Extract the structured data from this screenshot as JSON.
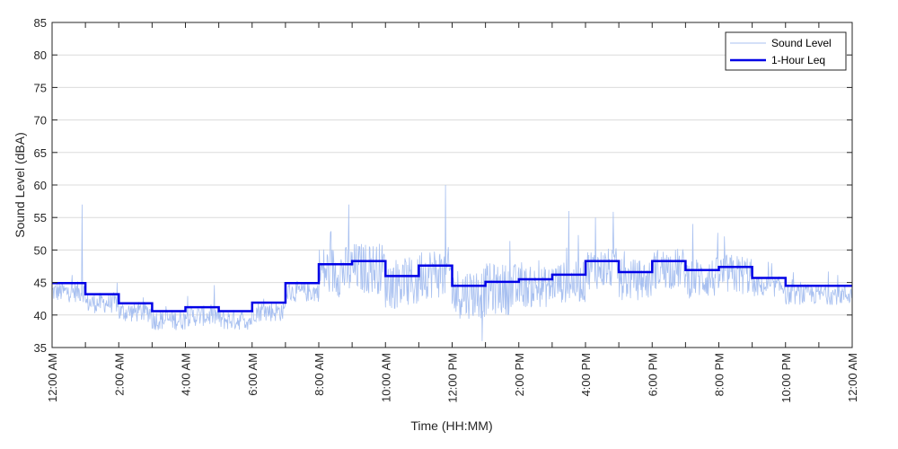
{
  "chart_data": {
    "type": "line",
    "xlabel": "Time (HH:MM)",
    "ylabel": "Sound Level (dBA)",
    "ylim": [
      35,
      85
    ],
    "yticks": [
      35,
      40,
      45,
      50,
      55,
      60,
      65,
      70,
      75,
      80,
      85
    ],
    "xlim_hours": [
      0,
      24
    ],
    "xtick_hours": [
      0,
      2,
      4,
      6,
      8,
      10,
      12,
      14,
      16,
      18,
      20,
      22,
      24
    ],
    "xtick_labels": [
      "12:00 AM",
      "2:00 AM",
      "4:00 AM",
      "6:00 AM",
      "8:00 AM",
      "10:00 AM",
      "12:00 PM",
      "2:00 PM",
      "4:00 PM",
      "6:00 PM",
      "8:00 PM",
      "10:00 PM",
      "12:00 AM"
    ],
    "grid": "horizontal",
    "legend_position": "top-right",
    "colors": {
      "sound_level": "#a8c0f0",
      "leq": "#0000e6"
    },
    "series": [
      {
        "name": "Sound Level",
        "kind": "noisy-trace",
        "peaks": [
          {
            "hour": 0.9,
            "value": 57
          },
          {
            "hour": 8.9,
            "value": 57
          },
          {
            "hour": 11.8,
            "value": 60
          },
          {
            "hour": 12.9,
            "value": 36
          },
          {
            "hour": 15.5,
            "value": 56
          },
          {
            "hour": 16.3,
            "value": 55
          }
        ]
      },
      {
        "name": "1-Hour Leq",
        "kind": "step",
        "start_hours": [
          0,
          1,
          2,
          3,
          4,
          5,
          6,
          7,
          8,
          9,
          10,
          11,
          12,
          13,
          14,
          15,
          16,
          17,
          18,
          19,
          20,
          21,
          22,
          23
        ],
        "values": [
          44.9,
          43.2,
          41.8,
          40.6,
          41.2,
          40.6,
          41.9,
          44.9,
          47.8,
          48.3,
          46.0,
          47.6,
          44.5,
          45.1,
          45.5,
          46.2,
          48.3,
          46.6,
          48.3,
          46.9,
          47.4,
          45.7,
          44.5,
          44.5
        ]
      }
    ]
  }
}
